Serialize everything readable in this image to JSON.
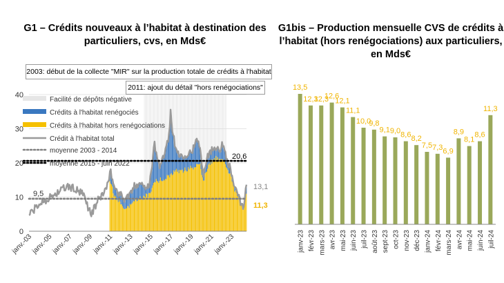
{
  "charts_header": {
    "left_title": [
      "G1 – Crédits nouveaux à l’habitat à destination des",
      "particuliers, cvs, en Mds€"
    ],
    "right_title": [
      "G1bis – Production mensuelle CVS de crédits à",
      "l’habitat (hors renégociations) aux particuliers,",
      "en Mds€"
    ]
  },
  "chart_data": [
    {
      "type": "area",
      "title": "G1 – Crédits nouveaux à l’habitat à destination des particuliers, cvs, en Mds€",
      "ylim": [
        0,
        40
      ],
      "yticks": [
        0,
        10,
        20,
        30,
        40
      ],
      "xticks": [
        "janv.-03",
        "janv.-05",
        "janv.-07",
        "janv.-09",
        "janv.-11",
        "janv.-13",
        "janv.-15",
        "janv.-17",
        "janv.-19",
        "janv.-21",
        "janv.-23"
      ],
      "x_start": "2003-01",
      "x_end": "2024-07",
      "notes": [
        "2003: début de la collecte \"MIR\" sur la production totale de crédits à l'habitat",
        "2011: ajout du détail \"hors renégociations\""
      ],
      "legend": [
        {
          "label": "Facilité de dépôts négative",
          "color": "#e6e6e6"
        },
        {
          "label": "Crédits à l'habitat renégociés",
          "color": "#3a78c0"
        },
        {
          "label": "Crédits à l'habitat hors renégociations",
          "color": "#f5c000"
        },
        {
          "label": "Crédit à l'habitat total",
          "color": "#9a9a9a"
        },
        {
          "label": "moyenne 2003 - 2014",
          "color": "#808080"
        },
        {
          "label": "moyenne 2015 - juin 2022",
          "color": "#000000"
        }
      ],
      "annotations": {
        "avg_2003_2014": "9,5",
        "avg_2015_2022": "20,6",
        "last_total": "13,1",
        "last_excl_reneg": "11,3"
      },
      "averages": {
        "avg_2003_2014": 9.5,
        "avg_2015_2022": 20.6
      },
      "negative_rate_period": [
        "2014-06",
        "2022-07"
      ],
      "total_series": [
        [
          "2003-01",
          5
        ],
        [
          "2003-06",
          6
        ],
        [
          "2003-12",
          7.5
        ],
        [
          "2004-06",
          9
        ],
        [
          "2004-12",
          9.5
        ],
        [
          "2005-06",
          10.5
        ],
        [
          "2005-12",
          11.5
        ],
        [
          "2006-06",
          12.5
        ],
        [
          "2006-12",
          13
        ],
        [
          "2007-06",
          12.5
        ],
        [
          "2007-12",
          11.5
        ],
        [
          "2008-06",
          10.5
        ],
        [
          "2008-12",
          6.5
        ],
        [
          "2009-03",
          5
        ],
        [
          "2009-06",
          6.5
        ],
        [
          "2009-12",
          9.5
        ],
        [
          "2010-06",
          11.5
        ],
        [
          "2010-12",
          14
        ],
        [
          "2011-01",
          18.5
        ],
        [
          "2011-06",
          13
        ],
        [
          "2011-12",
          11
        ],
        [
          "2012-06",
          9.5
        ],
        [
          "2012-12",
          10.5
        ],
        [
          "2013-06",
          13
        ],
        [
          "2013-12",
          14.5
        ],
        [
          "2014-06",
          13
        ],
        [
          "2014-12",
          14
        ],
        [
          "2015-03",
          19
        ],
        [
          "2015-06",
          26
        ],
        [
          "2015-09",
          21
        ],
        [
          "2015-12",
          19.5
        ],
        [
          "2016-06",
          22
        ],
        [
          "2016-12",
          30
        ],
        [
          "2017-01",
          36
        ],
        [
          "2017-03",
          30
        ],
        [
          "2017-06",
          25
        ],
        [
          "2017-12",
          22
        ],
        [
          "2018-06",
          22.5
        ],
        [
          "2018-12",
          23
        ],
        [
          "2019-06",
          25
        ],
        [
          "2019-09",
          27
        ],
        [
          "2019-12",
          24
        ],
        [
          "2020-04",
          17
        ],
        [
          "2020-09",
          22.5
        ],
        [
          "2020-12",
          23
        ],
        [
          "2021-06",
          25
        ],
        [
          "2021-12",
          24
        ],
        [
          "2022-03",
          25.5
        ],
        [
          "2022-06",
          23
        ],
        [
          "2022-12",
          18
        ],
        [
          "2023-06",
          12
        ],
        [
          "2023-12",
          8.5
        ],
        [
          "2024-03",
          7
        ],
        [
          "2024-07",
          13.1
        ]
      ],
      "excl_reneg_series": [
        [
          "2011-01",
          15
        ],
        [
          "2011-06",
          10.5
        ],
        [
          "2011-12",
          9
        ],
        [
          "2012-06",
          7
        ],
        [
          "2012-12",
          7.5
        ],
        [
          "2013-06",
          8.5
        ],
        [
          "2013-12",
          9.5
        ],
        [
          "2014-06",
          10
        ],
        [
          "2014-12",
          11
        ],
        [
          "2015-06",
          14.5
        ],
        [
          "2015-12",
          15
        ],
        [
          "2016-06",
          15
        ],
        [
          "2016-12",
          16.5
        ],
        [
          "2017-06",
          17.5
        ],
        [
          "2017-12",
          17.5
        ],
        [
          "2018-06",
          18
        ],
        [
          "2018-12",
          18.5
        ],
        [
          "2019-06",
          19
        ],
        [
          "2019-12",
          20
        ],
        [
          "2020-04",
          14.5
        ],
        [
          "2020-09",
          19
        ],
        [
          "2020-12",
          20
        ],
        [
          "2021-06",
          21.5
        ],
        [
          "2021-12",
          21
        ],
        [
          "2022-06",
          20
        ],
        [
          "2022-12",
          16.5
        ],
        [
          "2023-06",
          11.5
        ],
        [
          "2023-12",
          8
        ],
        [
          "2024-03",
          7
        ],
        [
          "2024-07",
          11.3
        ]
      ]
    },
    {
      "type": "bar",
      "title": "G1bis – Production mensuelle CVS de crédits à l’habitat (hors renégociations) aux particuliers, en Mds€",
      "categories": [
        "janv-23",
        "févr-23",
        "mars-23",
        "avr-23",
        "mai-23",
        "juin-23",
        "juil-23",
        "août-23",
        "sept-23",
        "oct-23",
        "nov-23",
        "déc-23",
        "janv-24",
        "févr-24",
        "mars-24",
        "avr-24",
        "mai-24",
        "juin-24",
        "juil-24"
      ],
      "values": [
        13.5,
        12.3,
        12.3,
        12.6,
        12.1,
        11.1,
        10.0,
        9.8,
        9.1,
        9.0,
        8.6,
        8.2,
        7.5,
        7.3,
        6.9,
        8.9,
        8.1,
        8.6,
        11.3
      ],
      "labels": [
        "13,5",
        "12,3",
        "12,3",
        "12,6",
        "12,1",
        "11,1",
        "10,0",
        "9,8",
        "9,1",
        "9,0",
        "8,6",
        "8,2",
        "7,5",
        "7,3",
        "6,9",
        "8,9",
        "8,1",
        "8,6",
        "11,3"
      ],
      "bar_color": "#9aa85a",
      "label_color": "#f0b400",
      "ylim": [
        0,
        14.5
      ]
    }
  ]
}
